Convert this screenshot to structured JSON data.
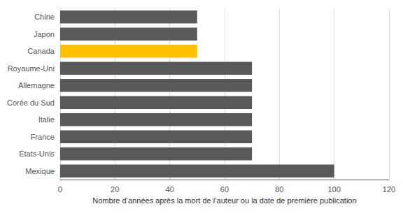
{
  "chart_data": {
    "type": "bar",
    "orientation": "horizontal",
    "categories": [
      "Chine",
      "Japon",
      "Canada",
      "Royaume-Uni",
      "Allemagne",
      "Corée du Sud",
      "Italie",
      "France",
      "États-Unis",
      "Mexique"
    ],
    "values": [
      50,
      50,
      50,
      70,
      70,
      70,
      70,
      70,
      70,
      100
    ],
    "colors": [
      "#595959",
      "#595959",
      "#FFC000",
      "#595959",
      "#595959",
      "#595959",
      "#595959",
      "#595959",
      "#595959",
      "#595959"
    ],
    "xlabel": "Nombre d’années après la mort de l’auteur ou la date de première publication",
    "xlim": [
      0,
      120
    ],
    "xticks": [
      0,
      20,
      40,
      60,
      80,
      100,
      120
    ],
    "grid": true
  }
}
